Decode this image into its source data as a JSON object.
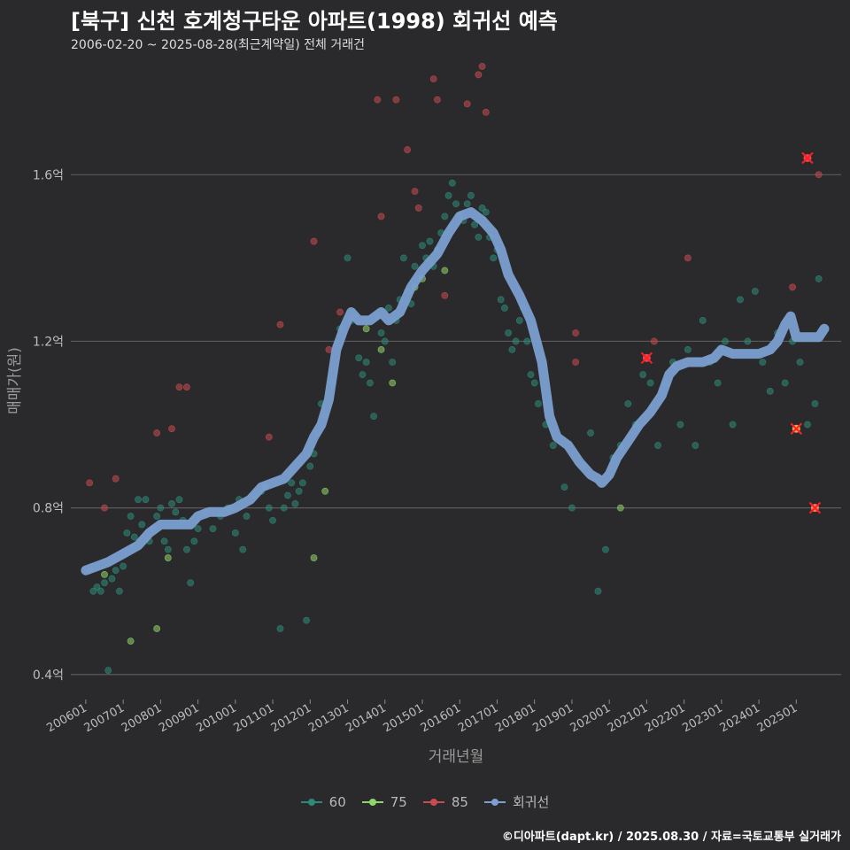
{
  "header": {
    "title": "[북구] 신천 호계청구타운 아파트(1998) 회귀선 예측",
    "subtitle": "2006-02-20 ~ 2025-08-28(최근계약일) 전체 거래건"
  },
  "credit": "©디아파트(dapt.kr) / 2025.08.30 / 자료=국토교통부 실거래가",
  "colors": {
    "background": "#2a2a2c",
    "grid": "#5a5a5a",
    "s60": "#2e8a78",
    "s75": "#8fd66a",
    "s85": "#c94a50",
    "regression": "#7b9fd0",
    "forecast": "#ff2020"
  },
  "chart_data": {
    "type": "scatter",
    "title": "[북구] 신천 호계청구타운 아파트(1998) 회귀선 예측",
    "xlabel": "거래년월",
    "ylabel": "매매가(원)",
    "xlim": [
      2005.6,
      2026.2
    ],
    "ylim": [
      0.34,
      1.86
    ],
    "y_unit": "억",
    "yticks": [
      {
        "value": 0.4,
        "label": "0.4억"
      },
      {
        "value": 0.8,
        "label": "0.8억"
      },
      {
        "value": 1.2,
        "label": "1.2억"
      },
      {
        "value": 1.6,
        "label": "1.6억"
      }
    ],
    "xticks": [
      {
        "value": 2006.0,
        "label": "200601"
      },
      {
        "value": 2007.0,
        "label": "200701"
      },
      {
        "value": 2008.0,
        "label": "200801"
      },
      {
        "value": 2009.0,
        "label": "200901"
      },
      {
        "value": 2010.0,
        "label": "201001"
      },
      {
        "value": 2011.0,
        "label": "201101"
      },
      {
        "value": 2012.0,
        "label": "201201"
      },
      {
        "value": 2013.0,
        "label": "201301"
      },
      {
        "value": 2014.0,
        "label": "201401"
      },
      {
        "value": 2015.0,
        "label": "201501"
      },
      {
        "value": 2016.0,
        "label": "201601"
      },
      {
        "value": 2017.0,
        "label": "201701"
      },
      {
        "value": 2018.0,
        "label": "201801"
      },
      {
        "value": 2019.0,
        "label": "201901"
      },
      {
        "value": 2020.0,
        "label": "202001"
      },
      {
        "value": 2021.0,
        "label": "202101"
      },
      {
        "value": 2022.0,
        "label": "202201"
      },
      {
        "value": 2023.0,
        "label": "202301"
      },
      {
        "value": 2024.0,
        "label": "202401"
      },
      {
        "value": 2025.0,
        "label": "202501"
      }
    ],
    "legend": [
      "60",
      "75",
      "85",
      "회귀선"
    ],
    "series": [
      {
        "name": "60",
        "color": "#2e8a78",
        "points": [
          [
            2006.1,
            0.65
          ],
          [
            2006.2,
            0.6
          ],
          [
            2006.3,
            0.61
          ],
          [
            2006.4,
            0.6
          ],
          [
            2006.5,
            0.62
          ],
          [
            2006.6,
            0.41
          ],
          [
            2006.7,
            0.63
          ],
          [
            2006.8,
            0.65
          ],
          [
            2006.9,
            0.6
          ],
          [
            2007.0,
            0.66
          ],
          [
            2007.1,
            0.74
          ],
          [
            2007.2,
            0.78
          ],
          [
            2007.3,
            0.73
          ],
          [
            2007.4,
            0.82
          ],
          [
            2007.5,
            0.76
          ],
          [
            2007.6,
            0.82
          ],
          [
            2007.7,
            0.72
          ],
          [
            2007.8,
            0.75
          ],
          [
            2007.9,
            0.78
          ],
          [
            2008.0,
            0.8
          ],
          [
            2008.1,
            0.72
          ],
          [
            2008.2,
            0.7
          ],
          [
            2008.3,
            0.81
          ],
          [
            2008.4,
            0.79
          ],
          [
            2008.5,
            0.82
          ],
          [
            2008.6,
            0.77
          ],
          [
            2008.7,
            0.7
          ],
          [
            2008.8,
            0.62
          ],
          [
            2008.9,
            0.72
          ],
          [
            2009.0,
            0.75
          ],
          [
            2009.2,
            0.79
          ],
          [
            2009.4,
            0.75
          ],
          [
            2009.6,
            0.78
          ],
          [
            2009.8,
            0.8
          ],
          [
            2010.0,
            0.74
          ],
          [
            2010.1,
            0.82
          ],
          [
            2010.2,
            0.7
          ],
          [
            2010.3,
            0.78
          ],
          [
            2010.5,
            0.83
          ],
          [
            2010.7,
            0.84
          ],
          [
            2010.9,
            0.8
          ],
          [
            2011.0,
            0.77
          ],
          [
            2011.2,
            0.51
          ],
          [
            2011.3,
            0.8
          ],
          [
            2011.4,
            0.83
          ],
          [
            2011.5,
            0.86
          ],
          [
            2011.6,
            0.81
          ],
          [
            2011.7,
            0.84
          ],
          [
            2011.8,
            0.86
          ],
          [
            2011.9,
            0.53
          ],
          [
            2012.0,
            0.9
          ],
          [
            2012.1,
            0.93
          ],
          [
            2012.2,
            0.98
          ],
          [
            2012.3,
            1.05
          ],
          [
            2012.4,
            1.02
          ],
          [
            2012.6,
            1.1
          ],
          [
            2012.8,
            1.23
          ],
          [
            2013.0,
            1.4
          ],
          [
            2013.1,
            1.25
          ],
          [
            2013.2,
            1.26
          ],
          [
            2013.3,
            1.16
          ],
          [
            2013.4,
            1.12
          ],
          [
            2013.5,
            1.15
          ],
          [
            2013.6,
            1.1
          ],
          [
            2013.7,
            1.02
          ],
          [
            2013.8,
            1.26
          ],
          [
            2013.9,
            1.22
          ],
          [
            2014.0,
            1.2
          ],
          [
            2014.1,
            1.28
          ],
          [
            2014.2,
            1.15
          ],
          [
            2014.3,
            1.25
          ],
          [
            2014.4,
            1.3
          ],
          [
            2014.5,
            1.4
          ],
          [
            2014.6,
            1.32
          ],
          [
            2014.7,
            1.29
          ],
          [
            2014.8,
            1.38
          ],
          [
            2014.9,
            1.35
          ],
          [
            2015.0,
            1.43
          ],
          [
            2015.1,
            1.4
          ],
          [
            2015.2,
            1.44
          ],
          [
            2015.3,
            1.38
          ],
          [
            2015.4,
            1.42
          ],
          [
            2015.5,
            1.46
          ],
          [
            2015.6,
            1.5
          ],
          [
            2015.7,
            1.55
          ],
          [
            2015.8,
            1.58
          ],
          [
            2015.9,
            1.53
          ],
          [
            2016.0,
            1.5
          ],
          [
            2016.1,
            1.49
          ],
          [
            2016.2,
            1.53
          ],
          [
            2016.3,
            1.55
          ],
          [
            2016.4,
            1.48
          ],
          [
            2016.5,
            1.45
          ],
          [
            2016.6,
            1.52
          ],
          [
            2016.7,
            1.51
          ],
          [
            2016.8,
            1.45
          ],
          [
            2016.9,
            1.4
          ],
          [
            2017.0,
            1.42
          ],
          [
            2017.1,
            1.3
          ],
          [
            2017.2,
            1.28
          ],
          [
            2017.3,
            1.22
          ],
          [
            2017.4,
            1.18
          ],
          [
            2017.5,
            1.2
          ],
          [
            2017.6,
            1.25
          ],
          [
            2017.7,
            1.28
          ],
          [
            2017.8,
            1.2
          ],
          [
            2017.9,
            1.12
          ],
          [
            2018.0,
            1.1
          ],
          [
            2018.1,
            1.05
          ],
          [
            2018.3,
            1.0
          ],
          [
            2018.5,
            0.95
          ],
          [
            2018.8,
            0.85
          ],
          [
            2019.0,
            0.8
          ],
          [
            2019.3,
            0.9
          ],
          [
            2019.5,
            0.98
          ],
          [
            2019.7,
            0.6
          ],
          [
            2019.9,
            0.7
          ],
          [
            2020.1,
            0.92
          ],
          [
            2020.3,
            0.95
          ],
          [
            2020.5,
            1.05
          ],
          [
            2020.7,
            1.0
          ],
          [
            2020.9,
            1.12
          ],
          [
            2021.1,
            1.1
          ],
          [
            2021.3,
            0.95
          ],
          [
            2021.5,
            1.1
          ],
          [
            2021.7,
            1.15
          ],
          [
            2021.9,
            1.0
          ],
          [
            2022.1,
            1.18
          ],
          [
            2022.3,
            0.95
          ],
          [
            2022.5,
            1.25
          ],
          [
            2022.7,
            1.15
          ],
          [
            2022.9,
            1.1
          ],
          [
            2023.1,
            1.2
          ],
          [
            2023.3,
            1.0
          ],
          [
            2023.5,
            1.3
          ],
          [
            2023.7,
            1.2
          ],
          [
            2023.9,
            1.32
          ],
          [
            2024.1,
            1.15
          ],
          [
            2024.3,
            1.08
          ],
          [
            2024.5,
            1.22
          ],
          [
            2024.7,
            1.1
          ],
          [
            2024.9,
            1.2
          ],
          [
            2025.1,
            1.15
          ],
          [
            2025.3,
            1.0
          ],
          [
            2025.5,
            1.05
          ],
          [
            2025.6,
            1.35
          ]
        ]
      },
      {
        "name": "75",
        "color": "#8fd66a",
        "points": [
          [
            2006.5,
            0.64
          ],
          [
            2007.2,
            0.48
          ],
          [
            2007.9,
            0.51
          ],
          [
            2008.2,
            0.68
          ],
          [
            2010.8,
            0.85
          ],
          [
            2012.1,
            0.68
          ],
          [
            2012.4,
            0.84
          ],
          [
            2013.5,
            1.23
          ],
          [
            2013.9,
            1.18
          ],
          [
            2014.2,
            1.1
          ],
          [
            2014.8,
            1.33
          ],
          [
            2015.0,
            1.35
          ],
          [
            2015.6,
            1.37
          ],
          [
            2020.3,
            0.8
          ]
        ]
      },
      {
        "name": "85",
        "color": "#c94a50",
        "points": [
          [
            2006.1,
            0.86
          ],
          [
            2006.5,
            0.8
          ],
          [
            2006.8,
            0.87
          ],
          [
            2007.9,
            0.98
          ],
          [
            2008.3,
            0.99
          ],
          [
            2008.5,
            1.09
          ],
          [
            2008.7,
            1.09
          ],
          [
            2010.9,
            0.97
          ],
          [
            2011.2,
            1.24
          ],
          [
            2012.1,
            1.44
          ],
          [
            2012.5,
            1.18
          ],
          [
            2012.8,
            1.27
          ],
          [
            2013.8,
            1.78
          ],
          [
            2013.9,
            1.5
          ],
          [
            2014.3,
            1.78
          ],
          [
            2014.6,
            1.66
          ],
          [
            2014.8,
            1.56
          ],
          [
            2014.9,
            1.52
          ],
          [
            2015.3,
            1.83
          ],
          [
            2015.4,
            1.78
          ],
          [
            2015.6,
            1.31
          ],
          [
            2016.2,
            1.77
          ],
          [
            2016.5,
            1.84
          ],
          [
            2016.6,
            1.86
          ],
          [
            2016.7,
            1.75
          ],
          [
            2019.1,
            1.22
          ],
          [
            2019.1,
            1.15
          ],
          [
            2021.2,
            1.2
          ],
          [
            2022.1,
            1.4
          ],
          [
            2024.9,
            1.33
          ],
          [
            2025.6,
            1.6
          ]
        ]
      },
      {
        "name": "회귀선",
        "color": "#7b9fd0",
        "type": "line",
        "points": [
          [
            2006.0,
            0.65
          ],
          [
            2006.3,
            0.66
          ],
          [
            2006.6,
            0.67
          ],
          [
            2007.0,
            0.69
          ],
          [
            2007.4,
            0.71
          ],
          [
            2007.7,
            0.74
          ],
          [
            2008.0,
            0.76
          ],
          [
            2008.5,
            0.76
          ],
          [
            2008.8,
            0.76
          ],
          [
            2009.0,
            0.78
          ],
          [
            2009.3,
            0.79
          ],
          [
            2009.7,
            0.79
          ],
          [
            2010.0,
            0.8
          ],
          [
            2010.4,
            0.82
          ],
          [
            2010.7,
            0.85
          ],
          [
            2011.0,
            0.86
          ],
          [
            2011.3,
            0.87
          ],
          [
            2011.6,
            0.9
          ],
          [
            2011.9,
            0.93
          ],
          [
            2012.1,
            0.97
          ],
          [
            2012.3,
            1.0
          ],
          [
            2012.5,
            1.06
          ],
          [
            2012.7,
            1.18
          ],
          [
            2012.9,
            1.23
          ],
          [
            2013.1,
            1.27
          ],
          [
            2013.3,
            1.25
          ],
          [
            2013.6,
            1.25
          ],
          [
            2013.9,
            1.27
          ],
          [
            2014.1,
            1.25
          ],
          [
            2014.4,
            1.27
          ],
          [
            2014.7,
            1.33
          ],
          [
            2015.0,
            1.37
          ],
          [
            2015.4,
            1.41
          ],
          [
            2015.7,
            1.46
          ],
          [
            2016.0,
            1.5
          ],
          [
            2016.3,
            1.51
          ],
          [
            2016.6,
            1.49
          ],
          [
            2016.9,
            1.46
          ],
          [
            2017.1,
            1.42
          ],
          [
            2017.3,
            1.36
          ],
          [
            2017.6,
            1.31
          ],
          [
            2017.9,
            1.25
          ],
          [
            2018.2,
            1.15
          ],
          [
            2018.4,
            1.02
          ],
          [
            2018.6,
            0.97
          ],
          [
            2018.9,
            0.95
          ],
          [
            2019.2,
            0.91
          ],
          [
            2019.5,
            0.88
          ],
          [
            2019.7,
            0.87
          ],
          [
            2019.8,
            0.86
          ],
          [
            2020.0,
            0.88
          ],
          [
            2020.2,
            0.92
          ],
          [
            2020.5,
            0.96
          ],
          [
            2020.8,
            1.0
          ],
          [
            2021.1,
            1.03
          ],
          [
            2021.4,
            1.07
          ],
          [
            2021.6,
            1.12
          ],
          [
            2021.8,
            1.14
          ],
          [
            2022.1,
            1.15
          ],
          [
            2022.5,
            1.15
          ],
          [
            2022.8,
            1.16
          ],
          [
            2023.0,
            1.18
          ],
          [
            2023.3,
            1.17
          ],
          [
            2023.6,
            1.17
          ],
          [
            2024.0,
            1.17
          ],
          [
            2024.3,
            1.18
          ],
          [
            2024.5,
            1.2
          ],
          [
            2024.7,
            1.24
          ],
          [
            2024.85,
            1.26
          ],
          [
            2025.0,
            1.21
          ],
          [
            2025.3,
            1.21
          ],
          [
            2025.6,
            1.21
          ],
          [
            2025.75,
            1.23
          ]
        ]
      }
    ],
    "forecast_markers": [
      {
        "x": 2025.3,
        "y": 1.64,
        "fill": "#e8445a"
      },
      {
        "x": 2021.0,
        "y": 1.16,
        "fill": "#e8445a"
      },
      {
        "x": 2025.0,
        "y": 0.99,
        "fill": "#f5a050"
      },
      {
        "x": 2025.5,
        "y": 0.8,
        "fill": "#ff8060"
      }
    ]
  }
}
